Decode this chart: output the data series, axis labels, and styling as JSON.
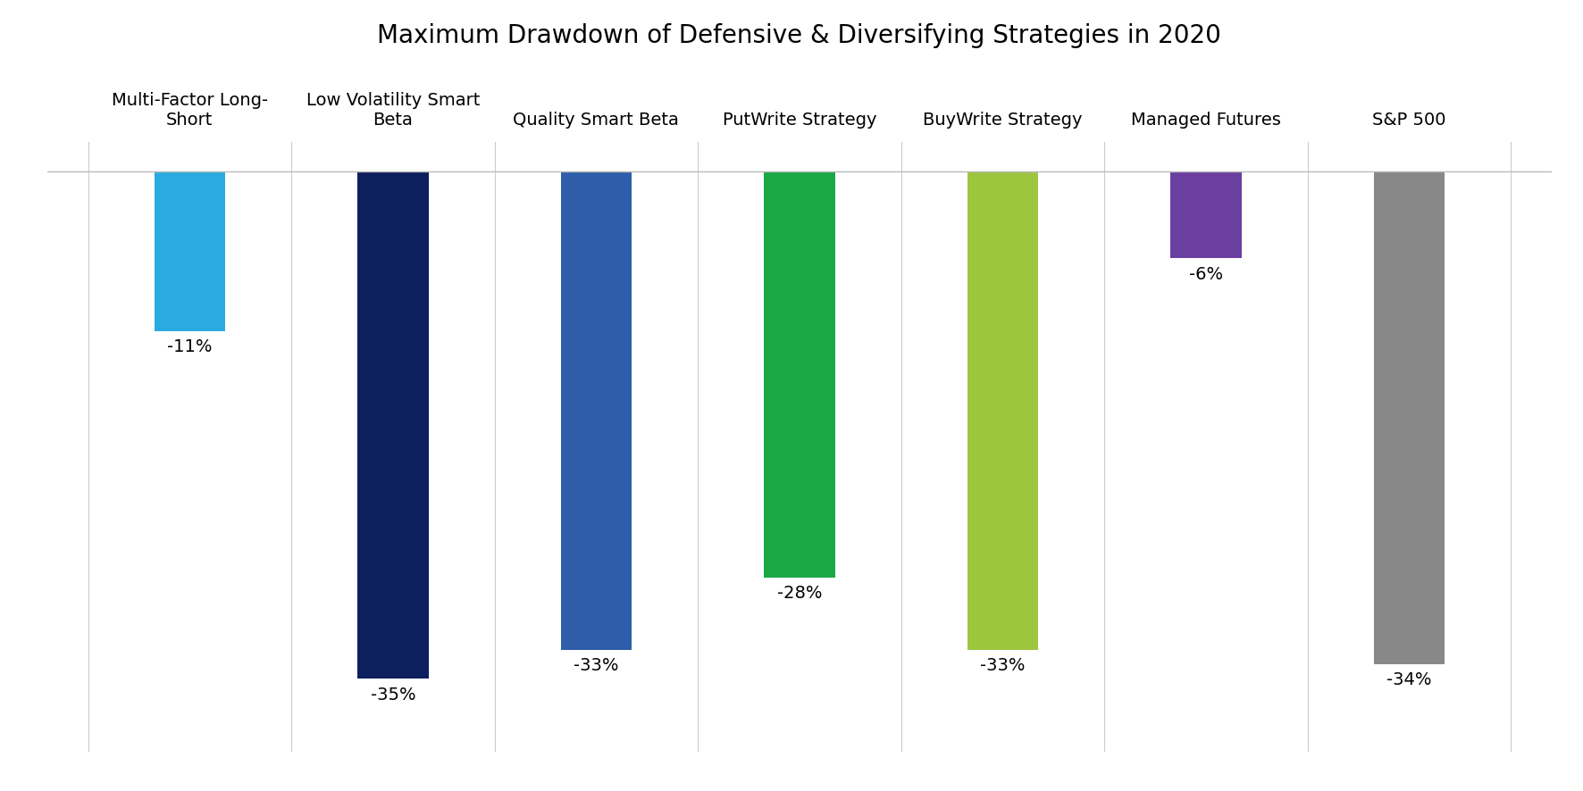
{
  "title": "Maximum Drawdown of Defensive & Diversifying Strategies in 2020",
  "categories": [
    "Multi-Factor Long-\nShort",
    "Low Volatility Smart\nBeta",
    "Quality Smart Beta",
    "PutWrite Strategy",
    "BuyWrite Strategy",
    "Managed Futures",
    "S&P 500"
  ],
  "values": [
    -11,
    -35,
    -33,
    -28,
    -33,
    -6,
    -34
  ],
  "bar_colors": [
    "#29ABE2",
    "#0D1F5C",
    "#2E5EAA",
    "#1AA845",
    "#9DC63F",
    "#6B3FA0",
    "#888888"
  ],
  "value_labels": [
    "-11%",
    "-35%",
    "-33%",
    "-28%",
    "-33%",
    "-6%",
    "-34%"
  ],
  "ylim": [
    -40,
    2
  ],
  "background_color": "#ffffff",
  "title_fontsize": 20,
  "label_fontsize": 14,
  "value_fontsize": 14,
  "bar_width": 0.35
}
